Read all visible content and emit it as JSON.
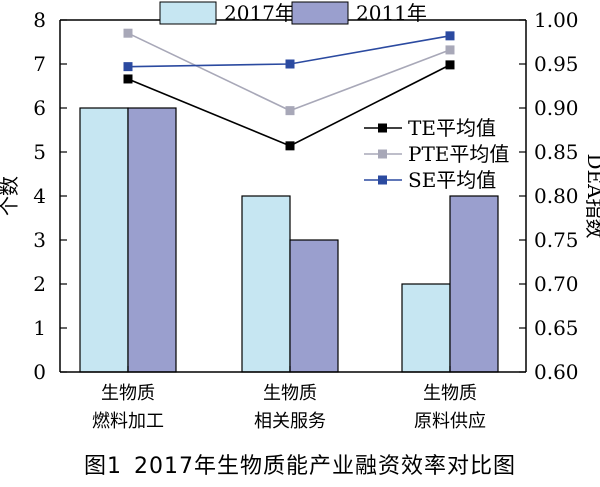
{
  "caption": {
    "figure_label": "图1",
    "title": "2017年生物质能产业融资效率对比图"
  },
  "chart_data": {
    "type": "bar",
    "categories": [
      [
        "生物质",
        "燃料加工"
      ],
      [
        "生物质",
        "相关服务"
      ],
      [
        "生物质",
        "原料供应"
      ]
    ],
    "bar_series": [
      {
        "name": "2017年",
        "values": [
          6,
          4,
          2
        ],
        "color": "#c6e6f2"
      },
      {
        "name": "2011年",
        "values": [
          6,
          3,
          4
        ],
        "color": "#9a9fce"
      }
    ],
    "line_series": [
      {
        "name": "TE平均值",
        "values": [
          0.933,
          0.857,
          0.949
        ],
        "color": "#000000"
      },
      {
        "name": "PTE平均值",
        "values": [
          0.985,
          0.897,
          0.966
        ],
        "color": "#a8a8b8"
      },
      {
        "name": "SE平均值",
        "values": [
          0.947,
          0.95,
          0.982
        ],
        "color": "#2b4aa0"
      }
    ],
    "ylabel_left": "个数",
    "ylabel_right": "DEA指数",
    "ylim_left": [
      0,
      8
    ],
    "ylim_right": [
      0.6,
      1.0
    ],
    "yticks_left": [
      "0",
      "1",
      "2",
      "3",
      "4",
      "5",
      "6",
      "7",
      "8"
    ],
    "yticks_right": [
      "0.60",
      "0.65",
      "0.70",
      "0.75",
      "0.80",
      "0.85",
      "0.90",
      "0.95",
      "1.00"
    ],
    "grid": false,
    "legend_bars_position": "top",
    "legend_lines_position": "right-center"
  }
}
